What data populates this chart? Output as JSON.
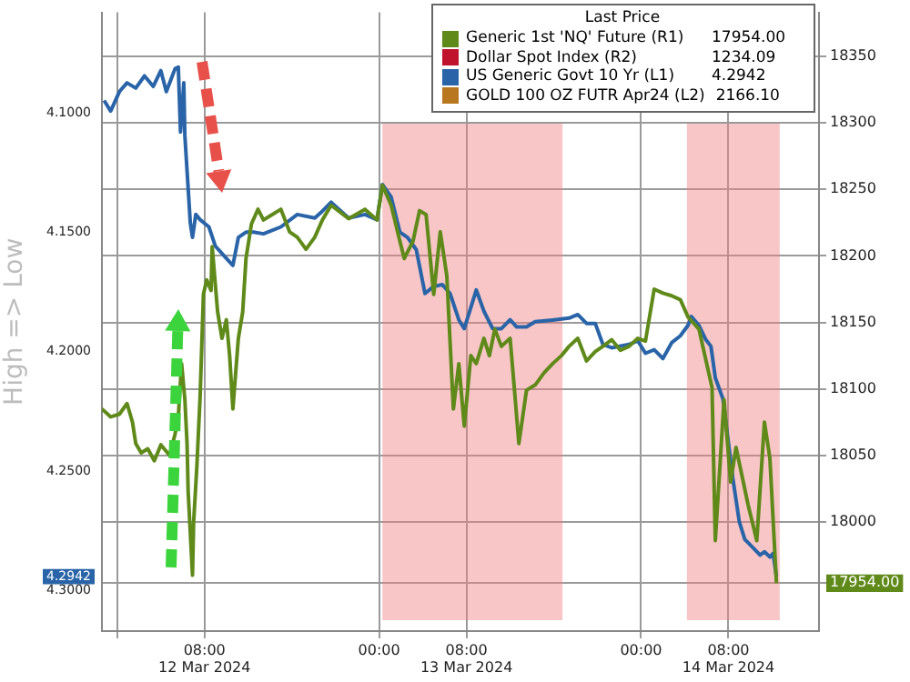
{
  "chart_data": {
    "type": "line",
    "ylabel": "High => Low",
    "legend_title": "Last Price",
    "legend": "top right",
    "grid": true,
    "marker": "none",
    "xlim": [
      "2024-03-11T22:36",
      "2024-03-14T16:18"
    ],
    "xticks": [
      {
        "value": "2024-03-12T00:00",
        "label": null
      },
      {
        "value": "2024-03-12T08:00",
        "label": "08:00\n12 Mar 2024"
      },
      {
        "value": "2024-03-13T00:00",
        "label": "00:00"
      },
      {
        "value": "2024-03-13T08:00",
        "label": "08:00\n13 Mar 2024"
      },
      {
        "value": "2024-03-14T00:00",
        "label": "00:00"
      },
      {
        "value": "2024-03-14T08:00",
        "label": "08:00\n14 Mar 2024"
      }
    ],
    "ylim": [
      4.317,
      4.058
    ],
    "yticks": [
      {
        "value": 4.1,
        "label": "4.1000"
      },
      {
        "value": 4.15,
        "label": "4.1500"
      },
      {
        "value": 4.2,
        "label": "4.2000"
      },
      {
        "value": 4.25,
        "label": "4.2500"
      },
      {
        "value": 4.3,
        "label": "4.3000"
      },
      {
        "value": 4.2942,
        "label": "4.2942"
      }
    ],
    "y2lim": [
      17918,
      18383
    ],
    "y2ticks": [
      18000,
      18050,
      18100,
      18150,
      18200,
      18250,
      18300,
      18350,
      {
        "value": 17954,
        "label": "17954.00"
      }
    ],
    "bands": [
      {
        "axis": "x",
        "from": "2024-03-13T00:18",
        "to": "2024-03-13T16:48",
        "color": "#f08080"
      },
      {
        "axis": "x",
        "from": "2024-03-14T04:12",
        "to": "2024-03-14T12:42",
        "color": "#f08080"
      }
    ],
    "annotations": [
      "17954.00",
      "1234.09",
      "4.2942",
      "2166.10"
    ],
    "series": [
      {
        "name": "Generic 1st 'NQ' Future (R1)",
        "color": "#5f8a1a",
        "axis": "y2",
        "x": [
          "2024-03-11T22:36",
          "2024-03-11T23:24",
          "2024-03-12T00:12",
          "2024-03-12T00:54",
          "2024-03-12T01:24",
          "2024-03-12T01:42",
          "2024-03-12T02:12",
          "2024-03-12T02:48",
          "2024-03-12T03:24",
          "2024-03-12T04:00",
          "2024-03-12T04:48",
          "2024-03-12T05:18",
          "2024-03-12T05:36",
          "2024-03-12T05:54",
          "2024-03-12T06:12",
          "2024-03-12T06:24",
          "2024-03-12T06:30",
          "2024-03-12T06:54",
          "2024-03-12T07:00",
          "2024-03-12T07:18",
          "2024-03-12T07:36",
          "2024-03-12T07:54",
          "2024-03-12T08:12",
          "2024-03-12T08:36",
          "2024-03-12T08:42",
          "2024-03-12T09:12",
          "2024-03-12T09:36",
          "2024-03-12T10:00",
          "2024-03-12T10:18",
          "2024-03-12T10:36",
          "2024-03-12T11:06",
          "2024-03-12T11:30",
          "2024-03-12T11:48",
          "2024-03-12T12:18",
          "2024-03-12T12:54",
          "2024-03-12T13:24",
          "2024-03-12T14:12",
          "2024-03-12T15:00",
          "2024-03-12T15:48",
          "2024-03-12T16:30",
          "2024-03-12T17:18",
          "2024-03-12T18:06",
          "2024-03-12T18:48",
          "2024-03-12T19:36",
          "2024-03-12T21:12",
          "2024-03-12T22:42",
          "2024-03-12T23:48",
          "2024-03-13T00:18",
          "2024-03-13T01:06",
          "2024-03-13T01:54",
          "2024-03-13T02:18",
          "2024-03-13T03:06",
          "2024-03-13T03:42",
          "2024-03-13T04:18",
          "2024-03-13T05:00",
          "2024-03-13T05:36",
          "2024-03-13T06:12",
          "2024-03-13T06:48",
          "2024-03-13T07:18",
          "2024-03-13T07:48",
          "2024-03-13T08:24",
          "2024-03-13T08:54",
          "2024-03-13T09:36",
          "2024-03-13T10:06",
          "2024-03-13T10:36",
          "2024-03-13T11:12",
          "2024-03-13T12:00",
          "2024-03-13T12:24",
          "2024-03-13T12:48",
          "2024-03-13T13:06",
          "2024-03-13T13:30",
          "2024-03-13T14:18",
          "2024-03-13T15:06",
          "2024-03-13T15:54",
          "2024-03-13T16:42",
          "2024-03-13T17:24",
          "2024-03-13T18:12",
          "2024-03-13T19:00",
          "2024-03-13T19:48",
          "2024-03-13T20:30",
          "2024-03-13T21:18",
          "2024-03-13T22:06",
          "2024-03-13T22:54",
          "2024-03-13T23:42",
          "2024-03-14T00:24",
          "2024-03-14T01:12",
          "2024-03-14T02:00",
          "2024-03-14T02:48",
          "2024-03-14T03:36",
          "2024-03-14T04:18",
          "2024-03-14T05:18",
          "2024-03-14T06:30",
          "2024-03-14T06:48",
          "2024-03-14T07:36",
          "2024-03-14T08:12",
          "2024-03-14T08:42",
          "2024-03-14T09:48",
          "2024-03-14T10:36",
          "2024-03-14T11:18",
          "2024-03-14T11:48",
          "2024-03-14T12:24"
        ],
        "values": [
          18085,
          18079,
          18081,
          18089,
          18075,
          18059,
          18052,
          18055,
          18046,
          18058,
          18050,
          18066,
          18079,
          18119,
          18092,
          18059,
          18023,
          17960,
          17999,
          18042,
          18095,
          18171,
          18182,
          18174,
          18207,
          18158,
          18138,
          18152,
          18125,
          18085,
          18138,
          18158,
          18198,
          18224,
          18235,
          18227,
          18231,
          18235,
          18218,
          18214,
          18205,
          18214,
          18227,
          18238,
          18228,
          18235,
          18227,
          18253,
          18238,
          18211,
          18198,
          18211,
          18234,
          18231,
          18171,
          18218,
          18185,
          18085,
          18119,
          18072,
          18125,
          18119,
          18138,
          18125,
          18145,
          18132,
          18138,
          18099,
          18059,
          18076,
          18099,
          18103,
          18112,
          18119,
          18125,
          18132,
          18138,
          18121,
          18128,
          18132,
          18137,
          18129,
          18132,
          18138,
          18136,
          18175,
          18172,
          18170,
          18167,
          18154,
          18145,
          18101,
          17986,
          18092,
          18030,
          18056,
          18013,
          17986,
          18075,
          18048,
          17954
        ]
      },
      {
        "name": "Dollar Spot Index (R2)",
        "color": "#c0142c",
        "axis": "y2"
      },
      {
        "name": "US Generic Govt 10 Yr (L1)",
        "color": "#2a64a8",
        "axis": "y",
        "x": [
          "2024-03-11T22:48",
          "2024-03-11T23:24",
          "2024-03-12T00:12",
          "2024-03-12T00:54",
          "2024-03-12T01:42",
          "2024-03-12T02:30",
          "2024-03-12T03:18",
          "2024-03-12T04:00",
          "2024-03-12T04:30",
          "2024-03-12T05:18",
          "2024-03-12T05:36",
          "2024-03-12T05:48",
          "2024-03-12T06:06",
          "2024-03-12T06:12",
          "2024-03-12T06:30",
          "2024-03-12T06:42",
          "2024-03-12T06:54",
          "2024-03-12T07:12",
          "2024-03-12T07:36",
          "2024-03-12T08:24",
          "2024-03-12T09:00",
          "2024-03-12T10:00",
          "2024-03-12T10:36",
          "2024-03-12T11:06",
          "2024-03-12T11:48",
          "2024-03-12T12:30",
          "2024-03-12T13:24",
          "2024-03-12T15:00",
          "2024-03-12T16:30",
          "2024-03-12T18:06",
          "2024-03-12T18:48",
          "2024-03-12T19:36",
          "2024-03-12T21:12",
          "2024-03-12T22:42",
          "2024-03-12T23:48",
          "2024-03-13T00:18",
          "2024-03-13T01:06",
          "2024-03-13T01:54",
          "2024-03-13T02:36",
          "2024-03-13T03:24",
          "2024-03-13T04:12",
          "2024-03-13T05:00",
          "2024-03-13T05:48",
          "2024-03-13T06:30",
          "2024-03-13T07:18",
          "2024-03-13T07:48",
          "2024-03-13T08:54",
          "2024-03-13T09:36",
          "2024-03-13T10:24",
          "2024-03-13T11:12",
          "2024-03-13T12:00",
          "2024-03-13T12:36",
          "2024-03-13T13:30",
          "2024-03-13T14:18",
          "2024-03-13T15:54",
          "2024-03-13T17:24",
          "2024-03-13T18:12",
          "2024-03-13T19:00",
          "2024-03-13T19:48",
          "2024-03-13T20:30",
          "2024-03-13T21:18",
          "2024-03-13T22:54",
          "2024-03-13T23:42",
          "2024-03-14T00:24",
          "2024-03-14T01:12",
          "2024-03-14T02:00",
          "2024-03-14T02:48",
          "2024-03-14T03:36",
          "2024-03-14T04:18",
          "2024-03-14T04:36",
          "2024-03-14T05:18",
          "2024-03-14T05:54",
          "2024-03-14T06:24",
          "2024-03-14T06:48",
          "2024-03-14T07:30",
          "2024-03-14T07:54",
          "2024-03-14T08:24",
          "2024-03-14T09:00",
          "2024-03-14T09:30",
          "2024-03-14T10:18",
          "2024-03-14T10:54",
          "2024-03-14T11:18",
          "2024-03-14T11:48",
          "2024-03-14T12:06",
          "2024-03-14T12:24"
        ],
        "values": [
          4.0949,
          4.0993,
          4.0912,
          4.0875,
          4.0897,
          4.0846,
          4.089,
          4.0824,
          4.0912,
          4.0816,
          4.0809,
          4.1081,
          4.0875,
          4.1096,
          4.1316,
          4.1463,
          4.1522,
          4.1426,
          4.1448,
          4.1478,
          4.1559,
          4.161,
          4.1639,
          4.1522,
          4.15,
          4.15,
          4.1507,
          4.1478,
          4.1426,
          4.1441,
          4.1412,
          4.1375,
          4.1441,
          4.1426,
          4.1448,
          4.1301,
          4.1353,
          4.15,
          4.1522,
          4.1573,
          4.1757,
          4.1727,
          4.172,
          4.1757,
          4.1867,
          4.1904,
          4.1742,
          4.1831,
          4.1904,
          4.1904,
          4.1867,
          4.1897,
          4.1897,
          4.1875,
          4.1868,
          4.186,
          4.1845,
          4.1882,
          4.1882,
          4.197,
          4.1984,
          4.197,
          4.1955,
          4.2007,
          4.1992,
          4.2029,
          4.1963,
          4.1934,
          4.189,
          4.1853,
          4.189,
          4.1948,
          4.1978,
          4.211,
          4.2198,
          4.2345,
          4.2529,
          4.2713,
          4.2786,
          4.2823,
          4.2852,
          4.2838,
          4.286,
          4.2845,
          4.2942
        ]
      },
      {
        "name": "GOLD 100 OZ FUTR Apr24 (L2)",
        "color": "#b8771e",
        "axis": "y"
      }
    ]
  }
}
